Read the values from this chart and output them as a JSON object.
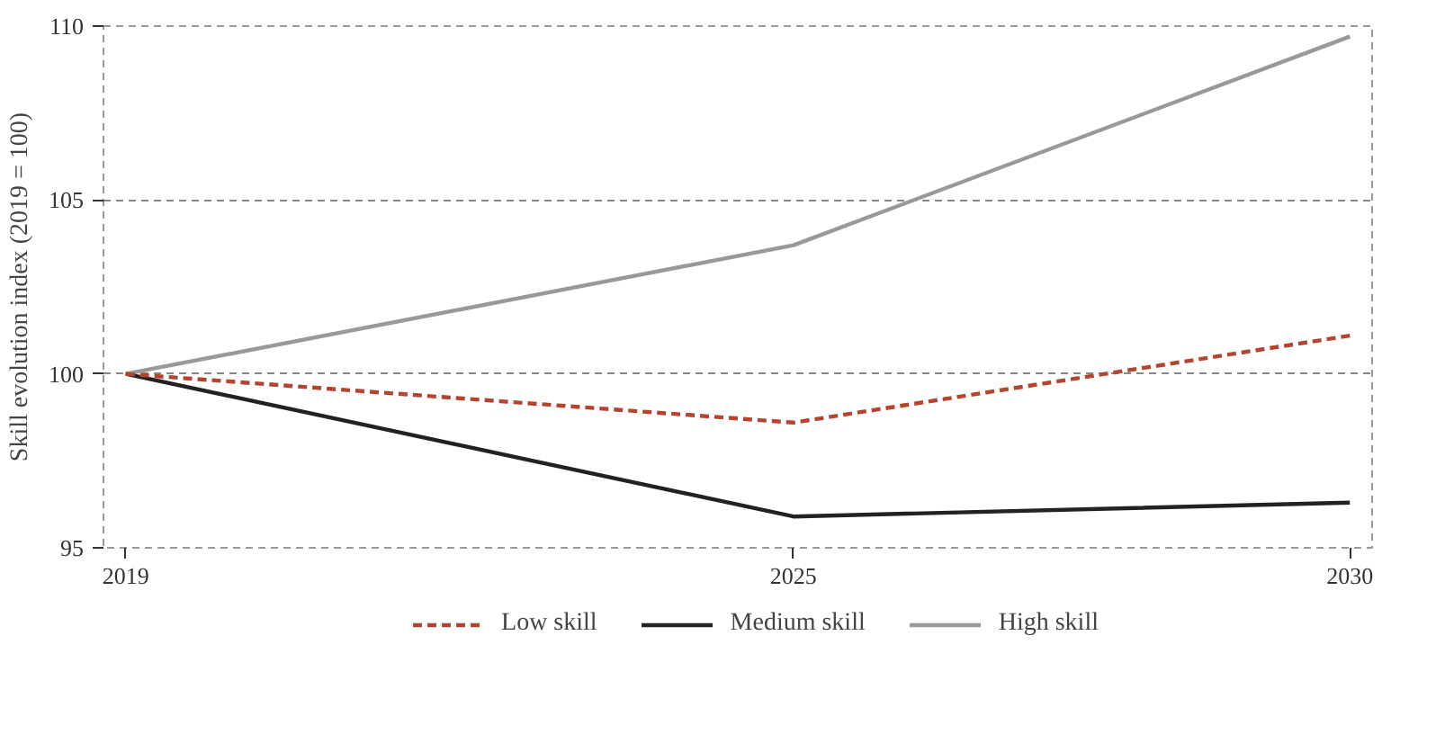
{
  "chart_data": {
    "type": "line",
    "ylabel": "Skill evolution index (2019 = 100)",
    "x": [
      2019,
      2025,
      2030
    ],
    "xlim": [
      2018.8,
      2030.2
    ],
    "xticks": [
      2019,
      2025,
      2030
    ],
    "ylim": [
      95,
      110
    ],
    "yticks": [
      95,
      100,
      105,
      110
    ],
    "grid": "y",
    "legend": "bottom",
    "marker": "none",
    "series": [
      {
        "name": "Low skill",
        "color": "#b5442f",
        "values": [
          100,
          98.6,
          101.1
        ],
        "line_style": "dashed"
      },
      {
        "name": "Medium skill",
        "color": "#222222",
        "values": [
          100,
          95.9,
          96.3
        ],
        "line_style": "solid"
      },
      {
        "name": "High skill",
        "color": "#999999",
        "values": [
          100,
          103.7,
          109.7
        ],
        "line_style": "solid"
      }
    ]
  }
}
